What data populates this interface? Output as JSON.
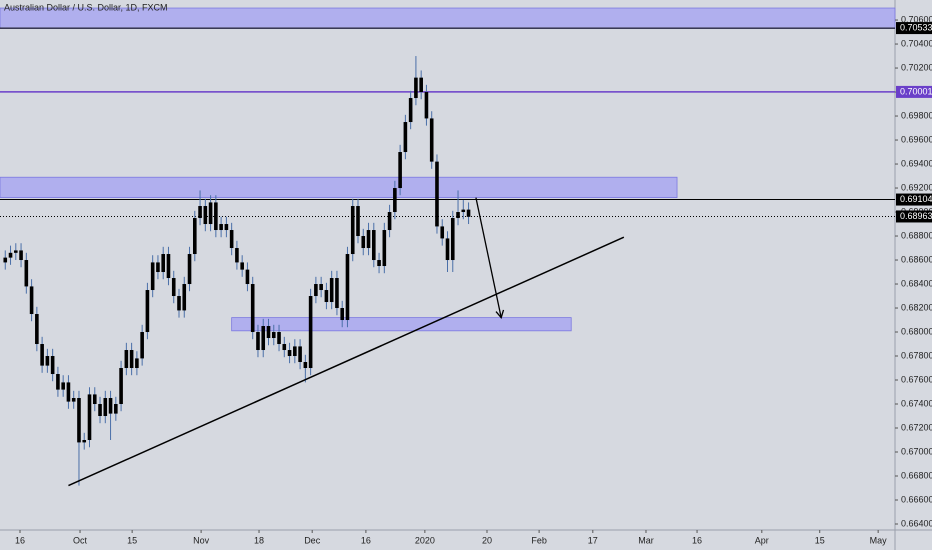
{
  "chart_data": {
    "type": "candlestick",
    "title": "Australian Dollar / U.S. Dollar, 1D, FXCM",
    "x": [
      1,
      2,
      3,
      4,
      5,
      6,
      7,
      8,
      9,
      10,
      11,
      12,
      13,
      14,
      15,
      16,
      17,
      18,
      19,
      20,
      21,
      22,
      23,
      24,
      25,
      26,
      27,
      28,
      29,
      30,
      31,
      32,
      33,
      34,
      35,
      36,
      37,
      38,
      39,
      40,
      41,
      42,
      43,
      44,
      45,
      46,
      47,
      48,
      49,
      50,
      51,
      52,
      53,
      54,
      55,
      56,
      57,
      58,
      59,
      60,
      61,
      62,
      63,
      64,
      65,
      66,
      67,
      68,
      69,
      70,
      71,
      72,
      73,
      74,
      75,
      76,
      77,
      78,
      79,
      80,
      81,
      82,
      83,
      84,
      85,
      86,
      87,
      88,
      89
    ],
    "open": [
      0.6858,
      0.6862,
      0.6866,
      0.6868,
      0.686,
      0.6838,
      0.6815,
      0.679,
      0.6772,
      0.678,
      0.6765,
      0.6752,
      0.6758,
      0.6742,
      0.6745,
      0.6708,
      0.671,
      0.6748,
      0.674,
      0.673,
      0.6745,
      0.6732,
      0.674,
      0.677,
      0.6785,
      0.677,
      0.6778,
      0.68,
      0.6835,
      0.6858,
      0.685,
      0.6865,
      0.6845,
      0.683,
      0.6818,
      0.684,
      0.6865,
      0.6895,
      0.6905,
      0.689,
      0.6908,
      0.6885,
      0.689,
      0.6885,
      0.687,
      0.6858,
      0.6852,
      0.684,
      0.68,
      0.6785,
      0.6805,
      0.6795,
      0.68,
      0.679,
      0.6785,
      0.678,
      0.6788,
      0.6775,
      0.677,
      0.683,
      0.684,
      0.6835,
      0.6825,
      0.6845,
      0.682,
      0.681,
      0.6865,
      0.6905,
      0.688,
      0.687,
      0.6885,
      0.686,
      0.6855,
      0.6885,
      0.69,
      0.692,
      0.695,
      0.6975,
      0.6995,
      0.7012,
      0.7,
      0.6978,
      0.6942,
      0.6888,
      0.6878,
      0.686,
      0.6895,
      0.69,
      0.6902
    ],
    "high": [
      0.6868,
      0.6872,
      0.6874,
      0.6874,
      0.6866,
      0.6844,
      0.6821,
      0.6796,
      0.6786,
      0.6786,
      0.6771,
      0.6764,
      0.6764,
      0.6751,
      0.6751,
      0.6716,
      0.6754,
      0.6754,
      0.6746,
      0.6751,
      0.6751,
      0.6746,
      0.6776,
      0.6791,
      0.6791,
      0.6784,
      0.6806,
      0.6841,
      0.6864,
      0.6864,
      0.6871,
      0.6871,
      0.6851,
      0.6836,
      0.6846,
      0.6871,
      0.6901,
      0.6918,
      0.6911,
      0.6914,
      0.6914,
      0.6896,
      0.6896,
      0.6891,
      0.6876,
      0.6864,
      0.6858,
      0.6846,
      0.6806,
      0.6811,
      0.6811,
      0.6806,
      0.6806,
      0.6796,
      0.6791,
      0.6794,
      0.6794,
      0.6781,
      0.6836,
      0.6846,
      0.6846,
      0.6841,
      0.6851,
      0.6851,
      0.6826,
      0.6871,
      0.6911,
      0.6911,
      0.6886,
      0.6891,
      0.6891,
      0.6866,
      0.6891,
      0.6906,
      0.6926,
      0.6956,
      0.6981,
      0.7001,
      0.703,
      0.7018,
      0.7006,
      0.6984,
      0.6948,
      0.6894,
      0.6884,
      0.6901,
      0.6918,
      0.691,
      0.6908
    ],
    "low": [
      0.6852,
      0.6856,
      0.686,
      0.6854,
      0.6832,
      0.6809,
      0.6784,
      0.6766,
      0.6766,
      0.6759,
      0.6746,
      0.6746,
      0.6736,
      0.6736,
      0.6672,
      0.6702,
      0.6704,
      0.6734,
      0.6724,
      0.6724,
      0.671,
      0.6726,
      0.6734,
      0.6764,
      0.6764,
      0.6764,
      0.6772,
      0.6794,
      0.6829,
      0.6844,
      0.6844,
      0.6839,
      0.6824,
      0.6812,
      0.6812,
      0.6834,
      0.6859,
      0.6889,
      0.6884,
      0.6884,
      0.6879,
      0.6879,
      0.6879,
      0.6864,
      0.6852,
      0.6846,
      0.6834,
      0.6794,
      0.6779,
      0.6779,
      0.6789,
      0.6789,
      0.6784,
      0.6779,
      0.6774,
      0.6774,
      0.6769,
      0.6758,
      0.6764,
      0.6824,
      0.6829,
      0.6819,
      0.6819,
      0.6814,
      0.6804,
      0.6804,
      0.6859,
      0.6874,
      0.6864,
      0.6864,
      0.6854,
      0.6849,
      0.6849,
      0.6879,
      0.6894,
      0.6914,
      0.6944,
      0.6969,
      0.6989,
      0.6994,
      0.6972,
      0.6936,
      0.6882,
      0.6872,
      0.685,
      0.685,
      0.6889,
      0.6894,
      0.689
    ],
    "close": [
      0.6862,
      0.6866,
      0.6868,
      0.686,
      0.6838,
      0.6815,
      0.679,
      0.6772,
      0.678,
      0.6765,
      0.6752,
      0.6758,
      0.6742,
      0.6745,
      0.6708,
      0.671,
      0.6748,
      0.674,
      0.673,
      0.6745,
      0.6732,
      0.674,
      0.677,
      0.6785,
      0.677,
      0.6778,
      0.68,
      0.6835,
      0.6858,
      0.685,
      0.6865,
      0.6845,
      0.683,
      0.6818,
      0.684,
      0.6865,
      0.6895,
      0.6905,
      0.689,
      0.6908,
      0.6885,
      0.689,
      0.6885,
      0.687,
      0.6858,
      0.6852,
      0.684,
      0.68,
      0.6785,
      0.6805,
      0.6795,
      0.68,
      0.679,
      0.6785,
      0.678,
      0.6788,
      0.6775,
      0.677,
      0.683,
      0.684,
      0.6835,
      0.6825,
      0.6845,
      0.682,
      0.681,
      0.6865,
      0.6905,
      0.688,
      0.687,
      0.6885,
      0.686,
      0.6855,
      0.6885,
      0.69,
      0.692,
      0.695,
      0.6975,
      0.6995,
      0.7012,
      0.7,
      0.6978,
      0.6942,
      0.6888,
      0.6878,
      0.686,
      0.6895,
      0.69,
      0.6902,
      0.6896
    ],
    "color": "#000000",
    "wick_color": "#4a6fa8",
    "xlim": [
      0,
      170
    ],
    "ylim": [
      0.6635,
      0.70767
    ],
    "xticks": [
      {
        "value": 3.8,
        "label": "16"
      },
      {
        "value": 15.2,
        "label": "Oct"
      },
      {
        "value": 25.1,
        "label": "15"
      },
      {
        "value": 38.2,
        "label": "Nov"
      },
      {
        "value": 49.2,
        "label": "18"
      },
      {
        "value": 59.3,
        "label": "Dec"
      },
      {
        "value": 69.5,
        "label": "16"
      },
      {
        "value": 80.7,
        "label": "2020"
      },
      {
        "value": 92.5,
        "label": "20"
      },
      {
        "value": 102.4,
        "label": "Feb"
      },
      {
        "value": 112.6,
        "label": "17"
      },
      {
        "value": 122.7,
        "label": "Mar"
      },
      {
        "value": 132.4,
        "label": "16"
      },
      {
        "value": 144.7,
        "label": "Apr"
      },
      {
        "value": 155.7,
        "label": "15"
      },
      {
        "value": 166.8,
        "label": "May"
      }
    ],
    "yticks": [
      {
        "value": 0.664,
        "label": "0.66400"
      },
      {
        "value": 0.666,
        "label": "0.66600"
      },
      {
        "value": 0.668,
        "label": "0.66800"
      },
      {
        "value": 0.67,
        "label": "0.67000"
      },
      {
        "value": 0.672,
        "label": "0.67200"
      },
      {
        "value": 0.674,
        "label": "0.67400"
      },
      {
        "value": 0.676,
        "label": "0.67600"
      },
      {
        "value": 0.678,
        "label": "0.67800"
      },
      {
        "value": 0.68,
        "label": "0.68000"
      },
      {
        "value": 0.682,
        "label": "0.68200"
      },
      {
        "value": 0.684,
        "label": "0.68400"
      },
      {
        "value": 0.686,
        "label": "0.68600"
      },
      {
        "value": 0.688,
        "label": "0.68800"
      },
      {
        "value": 0.69,
        "label": "0.69000"
      },
      {
        "value": 0.692,
        "label": "0.69200"
      },
      {
        "value": 0.694,
        "label": "0.69400"
      },
      {
        "value": 0.696,
        "label": "0.69600"
      },
      {
        "value": 0.698,
        "label": "0.69800"
      },
      {
        "value": 0.7,
        "label": "0.70000"
      },
      {
        "value": 0.702,
        "label": "0.70200"
      },
      {
        "value": 0.704,
        "label": "0.70400"
      },
      {
        "value": 0.706,
        "label": "0.70600"
      }
    ],
    "zones": [
      {
        "x": [
          0,
          170
        ],
        "y": [
          0.7053,
          0.707
        ],
        "color": "#a9a7f0"
      },
      {
        "x": [
          0,
          128.6
        ],
        "y": [
          0.6912,
          0.6929
        ],
        "color": "#a9a7f0"
      },
      {
        "x": [
          44,
          108.5
        ],
        "y": [
          0.6801,
          0.6812
        ],
        "color": "#a9a7f0"
      }
    ],
    "price_lines": [
      {
        "value": 0.70533,
        "color": "#000000",
        "style": "solid"
      },
      {
        "value": 0.70001,
        "color": "#6a3fc9",
        "style": "solid"
      },
      {
        "value": 0.69104,
        "color": "#000000",
        "style": "solid"
      },
      {
        "value": 0.68963,
        "color": "#000000",
        "style": "dotted"
      }
    ],
    "trendline": {
      "x": [
        13,
        118.5
      ],
      "y": [
        0.6672,
        0.6879
      ],
      "color": "#000000"
    },
    "arrow": {
      "x": [
        90.4,
        95.2
      ],
      "y": [
        0.6912,
        0.6812
      ],
      "color": "#000000"
    }
  }
}
